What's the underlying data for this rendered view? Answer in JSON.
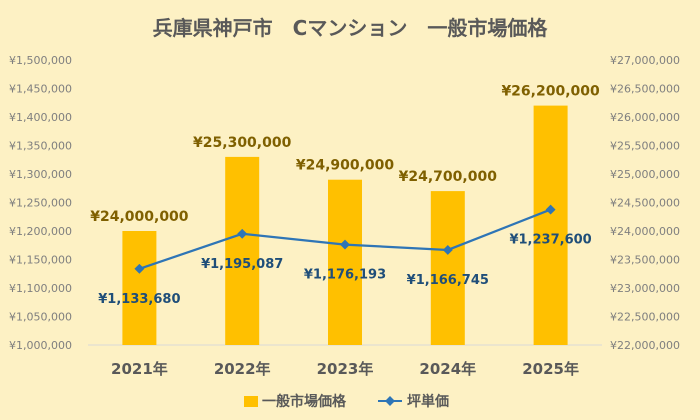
{
  "chart_data": {
    "type": "bar+line",
    "title": "兵庫県神戸市　Cマンション　一般市場価格",
    "categories": [
      "2021年",
      "2022年",
      "2023年",
      "2024年",
      "2025年"
    ],
    "series": [
      {
        "name": "一般市場価格",
        "type": "bar",
        "axis": "right",
        "values": [
          24000000,
          25300000,
          24900000,
          24700000,
          26200000
        ],
        "labels": [
          "¥24,000,000",
          "¥25,300,000",
          "¥24,900,000",
          "¥24,700,000",
          "¥26,200,000"
        ]
      },
      {
        "name": "坪単価",
        "type": "line",
        "axis": "left",
        "values": [
          1133680,
          1195087,
          1176193,
          1166745,
          1237600
        ],
        "labels": [
          "¥1,133,680",
          "¥1,195,087",
          "¥1,176,193",
          "¥1,166,745",
          "¥1,237,600"
        ]
      }
    ],
    "left_axis": {
      "ylim": [
        1000000,
        1500000
      ],
      "ticks": [
        "¥1,000,000",
        "¥1,050,000",
        "¥1,100,000",
        "¥1,150,000",
        "¥1,200,000",
        "¥1,250,000",
        "¥1,300,000",
        "¥1,350,000",
        "¥1,400,000",
        "¥1,450,000",
        "¥1,500,000"
      ]
    },
    "right_axis": {
      "ylim": [
        22000000,
        27000000
      ],
      "ticks": [
        "¥22,000,000",
        "¥22,500,000",
        "¥23,000,000",
        "¥23,500,000",
        "¥24,000,000",
        "¥24,500,000",
        "¥25,000,000",
        "¥25,500,000",
        "¥26,000,000",
        "¥26,500,000",
        "¥27,000,000"
      ]
    },
    "grid": false,
    "legend_position": "bottom",
    "colors": {
      "bar": "#ffc000",
      "line": "#2e75b6",
      "bar_label": "#7f6000",
      "line_label": "#1f4e79",
      "axis_text": "#7f7f7f",
      "title": "#595959",
      "category_text": "#595959"
    }
  }
}
